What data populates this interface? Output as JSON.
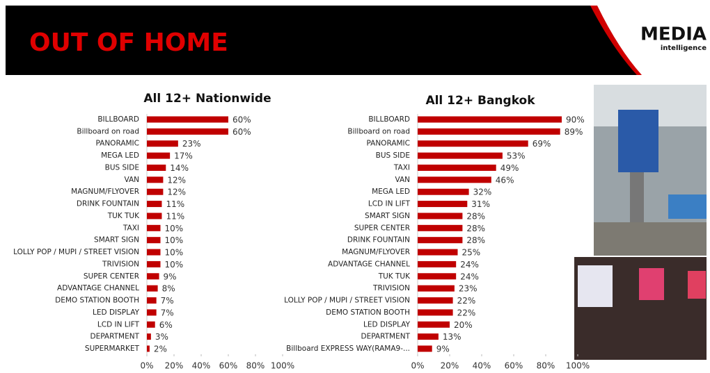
{
  "header": {
    "title": "OUT OF HOME",
    "logo": "MEDIA",
    "logo_sub": "intelligence"
  },
  "chart_data": [
    {
      "type": "bar",
      "orientation": "horizontal",
      "title": "All 12+ Nationwide",
      "color": "#c00000",
      "categories": [
        "BILLBOARD",
        "Billboard on road",
        "PANORAMIC",
        "MEGA LED",
        "BUS SIDE",
        "VAN",
        "MAGNUM/FLYOVER",
        "DRINK FOUNTAIN",
        "TUK TUK",
        "TAXI",
        "SMART SIGN",
        "LOLLY POP / MUPI / STREET VISION",
        "TRIVISION",
        "SUPER CENTER",
        "ADVANTAGE CHANNEL",
        "DEMO STATION BOOTH",
        "LED DISPLAY",
        "LCD IN LIFT",
        "DEPARTMENT",
        "SUPERMARKET"
      ],
      "values": [
        60,
        60,
        23,
        17,
        14,
        12,
        12,
        11,
        11,
        10,
        10,
        10,
        10,
        9,
        8,
        7,
        7,
        6,
        3,
        2
      ],
      "value_labels": [
        "60%",
        "60%",
        "23%",
        "17%",
        "14%",
        "12%",
        "12%",
        "11%",
        "11%",
        "10%",
        "10%",
        "10%",
        "10%",
        "9%",
        "8%",
        "7%",
        "7%",
        "6%",
        "3%",
        "2%"
      ],
      "xlim": [
        0,
        100
      ],
      "xticks": [
        {
          "value": 0,
          "label": "0%"
        },
        {
          "value": 20,
          "label": "20%"
        },
        {
          "value": 40,
          "label": "40%"
        },
        {
          "value": 60,
          "label": "60%"
        },
        {
          "value": 80,
          "label": "80%"
        },
        {
          "value": 100,
          "label": "100%"
        }
      ]
    },
    {
      "type": "bar",
      "orientation": "horizontal",
      "title": "All 12+ Bangkok",
      "color": "#c00000",
      "categories": [
        "BILLBOARD",
        "Billboard on road",
        "PANORAMIC",
        "BUS SIDE",
        "TAXI",
        "VAN",
        "MEGA LED",
        "LCD IN LIFT",
        "SMART SIGN",
        "SUPER CENTER",
        "DRINK FOUNTAIN",
        "MAGNUM/FLYOVER",
        "ADVANTAGE CHANNEL",
        "TUK TUK",
        "TRIVISION",
        "LOLLY POP / MUPI / STREET VISION",
        "DEMO STATION BOOTH",
        "LED DISPLAY",
        "DEPARTMENT",
        "Billboard EXPRESS WAY(RAMA9-..."
      ],
      "values": [
        90,
        89,
        69,
        53,
        49,
        46,
        32,
        31,
        28,
        28,
        28,
        25,
        24,
        24,
        23,
        22,
        22,
        20,
        13,
        9
      ],
      "value_labels": [
        "90%",
        "89%",
        "69%",
        "53%",
        "49%",
        "46%",
        "32%",
        "31%",
        "28%",
        "28%",
        "28%",
        "25%",
        "24%",
        "24%",
        "23%",
        "22%",
        "22%",
        "20%",
        "13%",
        "9%"
      ],
      "xlim": [
        0,
        100
      ],
      "xticks": [
        {
          "value": 0,
          "label": "0%"
        },
        {
          "value": 20,
          "label": "20%"
        },
        {
          "value": 40,
          "label": "40%"
        },
        {
          "value": 60,
          "label": "60%"
        },
        {
          "value": 80,
          "label": "80%"
        },
        {
          "value": 100,
          "label": "100%"
        }
      ]
    }
  ]
}
